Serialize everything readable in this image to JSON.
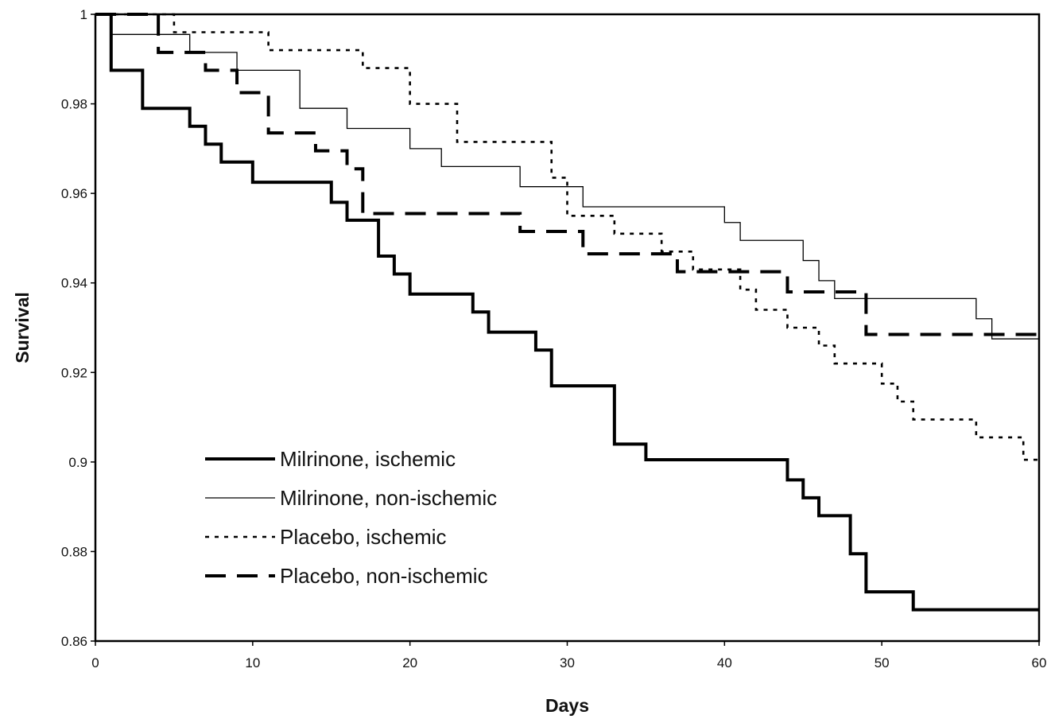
{
  "chart_data": {
    "type": "line",
    "title": "",
    "xlabel": "Days",
    "ylabel": "Survival",
    "xlim": [
      0,
      60
    ],
    "ylim": [
      0.86,
      1
    ],
    "x_ticks": [
      0,
      10,
      20,
      30,
      40,
      50,
      60
    ],
    "y_ticks": [
      0.86,
      0.88,
      0.9,
      0.92,
      0.94,
      0.96,
      0.98,
      1
    ],
    "x_tick_labels": [
      "0",
      "10",
      "20",
      "30",
      "40",
      "50",
      "60"
    ],
    "y_tick_labels": [
      "0.86",
      "0.88",
      "0.9",
      "0.92",
      "0.94",
      "0.96",
      "0.98",
      "1"
    ],
    "grid": false,
    "legend_position": "bottom-left",
    "series": [
      {
        "name": "Milrinone, ischemic",
        "style": "solid-thick",
        "color": "#000000",
        "points": [
          [
            0,
            1
          ],
          [
            1,
            1
          ],
          [
            1,
            0.9875
          ],
          [
            3,
            0.9875
          ],
          [
            3,
            0.979
          ],
          [
            6,
            0.979
          ],
          [
            6,
            0.975
          ],
          [
            7,
            0.975
          ],
          [
            7,
            0.971
          ],
          [
            8,
            0.971
          ],
          [
            8,
            0.967
          ],
          [
            10,
            0.967
          ],
          [
            10,
            0.9625
          ],
          [
            15,
            0.9625
          ],
          [
            15,
            0.958
          ],
          [
            16,
            0.958
          ],
          [
            16,
            0.954
          ],
          [
            18,
            0.954
          ],
          [
            18,
            0.946
          ],
          [
            19,
            0.946
          ],
          [
            19,
            0.942
          ],
          [
            20,
            0.942
          ],
          [
            20,
            0.9375
          ],
          [
            24,
            0.9375
          ],
          [
            24,
            0.9335
          ],
          [
            25,
            0.9335
          ],
          [
            25,
            0.929
          ],
          [
            28,
            0.929
          ],
          [
            28,
            0.925
          ],
          [
            29,
            0.925
          ],
          [
            29,
            0.917
          ],
          [
            33,
            0.917
          ],
          [
            33,
            0.904
          ],
          [
            35,
            0.904
          ],
          [
            35,
            0.9005
          ],
          [
            44,
            0.9005
          ],
          [
            44,
            0.896
          ],
          [
            45,
            0.896
          ],
          [
            45,
            0.892
          ],
          [
            46,
            0.892
          ],
          [
            46,
            0.888
          ],
          [
            48,
            0.888
          ],
          [
            48,
            0.8795
          ],
          [
            49,
            0.8795
          ],
          [
            49,
            0.871
          ],
          [
            52,
            0.871
          ],
          [
            52,
            0.867
          ],
          [
            60,
            0.867
          ]
        ]
      },
      {
        "name": "Milrinone, non-ischemic",
        "style": "solid-thin",
        "color": "#000000",
        "points": [
          [
            0,
            1
          ],
          [
            1,
            1
          ],
          [
            1,
            0.9955
          ],
          [
            6,
            0.9955
          ],
          [
            6,
            0.9915
          ],
          [
            9,
            0.9915
          ],
          [
            9,
            0.9875
          ],
          [
            13,
            0.9875
          ],
          [
            13,
            0.979
          ],
          [
            16,
            0.979
          ],
          [
            16,
            0.9745
          ],
          [
            20,
            0.9745
          ],
          [
            20,
            0.97
          ],
          [
            22,
            0.97
          ],
          [
            22,
            0.966
          ],
          [
            27,
            0.966
          ],
          [
            27,
            0.9615
          ],
          [
            31,
            0.9615
          ],
          [
            31,
            0.957
          ],
          [
            40,
            0.957
          ],
          [
            40,
            0.9535
          ],
          [
            41,
            0.9535
          ],
          [
            41,
            0.9495
          ],
          [
            45,
            0.9495
          ],
          [
            45,
            0.945
          ],
          [
            46,
            0.945
          ],
          [
            46,
            0.9405
          ],
          [
            47,
            0.9405
          ],
          [
            47,
            0.9365
          ],
          [
            56,
            0.9365
          ],
          [
            56,
            0.932
          ],
          [
            57,
            0.932
          ],
          [
            57,
            0.9275
          ],
          [
            60,
            0.9275
          ]
        ]
      },
      {
        "name": "Placebo, ischemic",
        "style": "dotted",
        "color": "#000000",
        "points": [
          [
            0,
            1
          ],
          [
            5,
            1
          ],
          [
            5,
            0.996
          ],
          [
            11,
            0.996
          ],
          [
            11,
            0.992
          ],
          [
            17,
            0.992
          ],
          [
            17,
            0.988
          ],
          [
            20,
            0.988
          ],
          [
            20,
            0.98
          ],
          [
            23,
            0.98
          ],
          [
            23,
            0.9715
          ],
          [
            29,
            0.9715
          ],
          [
            29,
            0.9635
          ],
          [
            30,
            0.9635
          ],
          [
            30,
            0.955
          ],
          [
            33,
            0.955
          ],
          [
            33,
            0.951
          ],
          [
            36,
            0.951
          ],
          [
            36,
            0.947
          ],
          [
            38,
            0.947
          ],
          [
            38,
            0.943
          ],
          [
            41,
            0.943
          ],
          [
            41,
            0.9385
          ],
          [
            42,
            0.9385
          ],
          [
            42,
            0.934
          ],
          [
            44,
            0.934
          ],
          [
            44,
            0.93
          ],
          [
            46,
            0.93
          ],
          [
            46,
            0.926
          ],
          [
            47,
            0.926
          ],
          [
            47,
            0.922
          ],
          [
            50,
            0.922
          ],
          [
            50,
            0.9175
          ],
          [
            51,
            0.9175
          ],
          [
            51,
            0.9135
          ],
          [
            52,
            0.9135
          ],
          [
            52,
            0.9095
          ],
          [
            56,
            0.9095
          ],
          [
            56,
            0.9055
          ],
          [
            59,
            0.9055
          ],
          [
            59,
            0.9005
          ],
          [
            60,
            0.9005
          ]
        ]
      },
      {
        "name": "Placebo, non-ischemic",
        "style": "dashed",
        "color": "#000000",
        "points": [
          [
            0,
            1
          ],
          [
            4,
            1
          ],
          [
            4,
            0.9915
          ],
          [
            7,
            0.9915
          ],
          [
            7,
            0.9875
          ],
          [
            9,
            0.9875
          ],
          [
            9,
            0.9825
          ],
          [
            11,
            0.9825
          ],
          [
            11,
            0.9735
          ],
          [
            14,
            0.9735
          ],
          [
            14,
            0.9695
          ],
          [
            16,
            0.9695
          ],
          [
            16,
            0.9655
          ],
          [
            17,
            0.9655
          ],
          [
            17,
            0.9555
          ],
          [
            27,
            0.9555
          ],
          [
            27,
            0.9515
          ],
          [
            31,
            0.9515
          ],
          [
            31,
            0.9465
          ],
          [
            37,
            0.9465
          ],
          [
            37,
            0.9425
          ],
          [
            44,
            0.9425
          ],
          [
            44,
            0.938
          ],
          [
            49,
            0.938
          ],
          [
            49,
            0.9285
          ],
          [
            60,
            0.9285
          ]
        ]
      }
    ]
  }
}
